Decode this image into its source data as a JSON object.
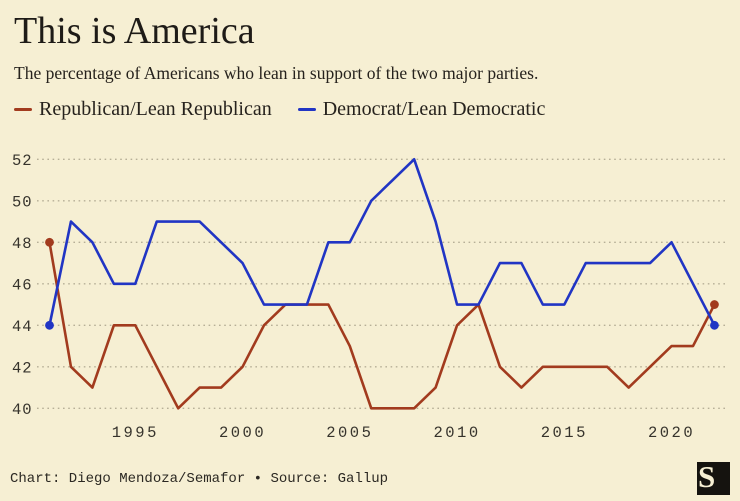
{
  "header": {
    "title": "This is America",
    "subtitle": "The percentage of Americans who lean in support of the two major parties."
  },
  "legend": [
    {
      "label": "Republican/Lean Republican",
      "color": "#a23b1e"
    },
    {
      "label": "Democrat/Lean Democratic",
      "color": "#2135c4"
    }
  ],
  "footer": {
    "credit": "Chart: Diego Mendoza/Semafor • Source: Gallup",
    "logo_letter": "S"
  },
  "colors": {
    "background": "#f6efd3",
    "ink": "#211e1a",
    "republican": "#a23b1e",
    "democrat": "#2135c4",
    "gridline": "#b6af97",
    "tick_text": "#36332c"
  },
  "chart_data": {
    "type": "line",
    "x": [
      1991,
      1992,
      1993,
      1994,
      1995,
      1996,
      1997,
      1998,
      1999,
      2000,
      2001,
      2002,
      2003,
      2004,
      2005,
      2006,
      2007,
      2008,
      2009,
      2010,
      2011,
      2012,
      2013,
      2014,
      2015,
      2016,
      2017,
      2018,
      2019,
      2020,
      2021,
      2022
    ],
    "series": [
      {
        "name": "Republican/Lean Republican",
        "color": "#a23b1e",
        "values": [
          48,
          42,
          41,
          44,
          44,
          42,
          40,
          41,
          41,
          42,
          44,
          45,
          45,
          45,
          43,
          40,
          40,
          40,
          41,
          44,
          45,
          42,
          41,
          42,
          42,
          42,
          42,
          41,
          42,
          43,
          43,
          45
        ]
      },
      {
        "name": "Democrat/Lean Democratic",
        "color": "#2135c4",
        "values": [
          44,
          49,
          48,
          46,
          46,
          49,
          49,
          49,
          48,
          47,
          45,
          45,
          45,
          48,
          48,
          50,
          51,
          52,
          49,
          45,
          45,
          47,
          47,
          45,
          45,
          47,
          47,
          47,
          47,
          48,
          46,
          44
        ]
      }
    ],
    "ylim": [
      40,
      52
    ],
    "yticks": [
      40,
      42,
      44,
      46,
      48,
      50,
      52
    ],
    "xticks": [
      1995,
      2000,
      2005,
      2010,
      2015,
      2020
    ],
    "grid": "horizontal-dotted",
    "legend_position": "top",
    "endpoint_markers": true
  }
}
